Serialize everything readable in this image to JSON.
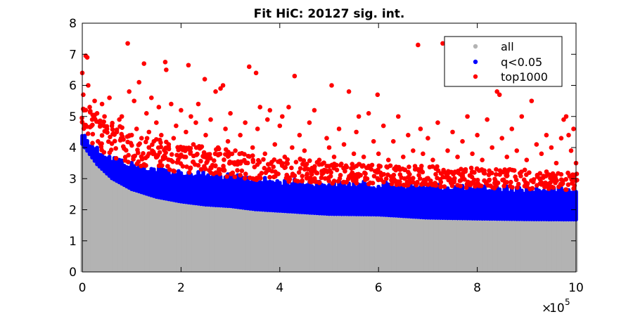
{
  "chart_data": {
    "type": "scatter",
    "title": "Fit HiC: 20127 sig. int.",
    "xlabel": "",
    "ylabel": "",
    "x_multiplier_label": "10",
    "x_multiplier_exponent": "5",
    "xlim": [
      0,
      10
    ],
    "ylim": [
      0,
      8
    ],
    "x_ticks": [
      0,
      2,
      4,
      6,
      8,
      10
    ],
    "x_tick_labels": [
      "0",
      "2",
      "4",
      "6",
      "8",
      "10"
    ],
    "y_ticks": [
      0,
      1,
      2,
      3,
      4,
      5,
      6,
      7,
      8
    ],
    "y_tick_labels": [
      "0",
      "1",
      "2",
      "3",
      "4",
      "5",
      "6",
      "7",
      "8"
    ],
    "grid": false,
    "legend_position": "top-right",
    "series": [
      {
        "name": "all",
        "color": "#b3b3b3",
        "x_start": 0.0,
        "x_end": 10.0,
        "column_spacing": 0.05,
        "ceiling_profile": [
          [
            0.0,
            4.05
          ],
          [
            0.3,
            3.4
          ],
          [
            0.6,
            2.95
          ],
          [
            1.0,
            2.6
          ],
          [
            1.5,
            2.35
          ],
          [
            2.0,
            2.2
          ],
          [
            2.5,
            2.1
          ],
          [
            3.0,
            2.05
          ],
          [
            3.5,
            1.95
          ],
          [
            4.0,
            1.9
          ],
          [
            5.0,
            1.8
          ],
          [
            6.0,
            1.78
          ],
          [
            7.0,
            1.68
          ],
          [
            8.0,
            1.65
          ],
          [
            9.0,
            1.63
          ],
          [
            10.0,
            1.62
          ]
        ],
        "y_min": 0.0
      },
      {
        "name": "q<0.05",
        "color": "#0000ff",
        "x_start": 0.0,
        "x_end": 10.0,
        "column_spacing": 0.05,
        "floor_profile": [
          [
            0.0,
            4.05
          ],
          [
            0.3,
            3.4
          ],
          [
            0.6,
            2.95
          ],
          [
            1.0,
            2.6
          ],
          [
            1.5,
            2.35
          ],
          [
            2.0,
            2.2
          ],
          [
            2.5,
            2.1
          ],
          [
            3.0,
            2.05
          ],
          [
            3.5,
            1.95
          ],
          [
            4.0,
            1.9
          ],
          [
            5.0,
            1.8
          ],
          [
            6.0,
            1.78
          ],
          [
            7.0,
            1.68
          ],
          [
            8.0,
            1.65
          ],
          [
            9.0,
            1.63
          ],
          [
            10.0,
            1.62
          ]
        ],
        "ceiling_profile": [
          [
            0.0,
            4.6
          ],
          [
            0.3,
            4.1
          ],
          [
            0.6,
            3.8
          ],
          [
            1.0,
            3.6
          ],
          [
            1.5,
            3.45
          ],
          [
            2.0,
            3.35
          ],
          [
            2.5,
            3.28
          ],
          [
            3.0,
            3.2
          ],
          [
            3.5,
            3.12
          ],
          [
            4.0,
            3.05
          ],
          [
            5.0,
            3.0
          ],
          [
            6.0,
            2.95
          ],
          [
            7.0,
            2.9
          ],
          [
            8.0,
            2.85
          ],
          [
            9.0,
            2.82
          ],
          [
            10.0,
            2.78
          ]
        ]
      },
      {
        "name": "top1000",
        "color": "#ff0000",
        "points": [
          [
            0.0,
            6.4
          ],
          [
            0.02,
            5.7
          ],
          [
            0.03,
            5.2
          ],
          [
            0.07,
            6.95
          ],
          [
            0.1,
            6.9
          ],
          [
            0.12,
            6.0
          ],
          [
            0.15,
            5.3
          ],
          [
            0.2,
            4.9
          ],
          [
            0.25,
            5.5
          ],
          [
            0.3,
            5.1
          ],
          [
            0.35,
            4.8
          ],
          [
            0.4,
            5.4
          ],
          [
            0.45,
            5.0
          ],
          [
            0.5,
            4.6
          ],
          [
            0.55,
            5.6
          ],
          [
            0.6,
            4.7
          ],
          [
            0.7,
            4.5
          ],
          [
            0.75,
            4.9
          ],
          [
            0.8,
            5.0
          ],
          [
            0.92,
            7.35
          ],
          [
            0.95,
            5.8
          ],
          [
            1.0,
            4.4
          ],
          [
            1.05,
            5.5
          ],
          [
            1.1,
            4.6
          ],
          [
            1.15,
            6.1
          ],
          [
            1.2,
            4.3
          ],
          [
            1.25,
            6.7
          ],
          [
            1.3,
            5.1
          ],
          [
            1.35,
            4.5
          ],
          [
            1.4,
            5.6
          ],
          [
            1.45,
            4.2
          ],
          [
            1.5,
            4.8
          ],
          [
            1.55,
            5.3
          ],
          [
            1.6,
            4.4
          ],
          [
            1.68,
            6.75
          ],
          [
            1.7,
            6.5
          ],
          [
            1.75,
            4.1
          ],
          [
            1.8,
            5.4
          ],
          [
            1.85,
            4.3
          ],
          [
            1.9,
            4.7
          ],
          [
            2.0,
            5.2
          ],
          [
            2.05,
            4.0
          ],
          [
            2.1,
            4.5
          ],
          [
            2.15,
            6.65
          ],
          [
            2.2,
            5.0
          ],
          [
            2.25,
            4.1
          ],
          [
            2.3,
            4.8
          ],
          [
            2.35,
            5.4
          ],
          [
            2.4,
            4.0
          ],
          [
            2.48,
            6.2
          ],
          [
            2.5,
            4.4
          ],
          [
            2.6,
            4.9
          ],
          [
            2.7,
            5.8
          ],
          [
            2.75,
            4.0
          ],
          [
            2.8,
            5.9
          ],
          [
            2.85,
            6.0
          ],
          [
            2.9,
            4.6
          ],
          [
            2.95,
            4.2
          ],
          [
            3.0,
            5.1
          ],
          [
            3.1,
            3.9
          ],
          [
            3.2,
            4.4
          ],
          [
            3.3,
            4.8
          ],
          [
            3.38,
            6.6
          ],
          [
            3.45,
            4.0
          ],
          [
            3.52,
            6.4
          ],
          [
            3.55,
            4.6
          ],
          [
            3.6,
            5.3
          ],
          [
            3.7,
            3.8
          ],
          [
            3.75,
            4.9
          ],
          [
            3.8,
            5.2
          ],
          [
            3.9,
            4.1
          ],
          [
            4.0,
            4.7
          ],
          [
            4.05,
            5.0
          ],
          [
            4.1,
            3.7
          ],
          [
            4.18,
            5.3
          ],
          [
            4.25,
            4.0
          ],
          [
            4.3,
            6.3
          ],
          [
            4.4,
            4.4
          ],
          [
            4.5,
            3.9
          ],
          [
            4.6,
            4.8
          ],
          [
            4.7,
            5.2
          ],
          [
            4.8,
            3.6
          ],
          [
            4.95,
            4.3
          ],
          [
            5.0,
            4.0
          ],
          [
            5.05,
            6.0
          ],
          [
            5.1,
            3.7
          ],
          [
            5.2,
            4.6
          ],
          [
            5.3,
            4.1
          ],
          [
            5.4,
            5.8
          ],
          [
            5.5,
            3.8
          ],
          [
            5.55,
            4.5
          ],
          [
            5.6,
            5.0
          ],
          [
            5.7,
            3.7
          ],
          [
            5.8,
            5.1
          ],
          [
            5.9,
            4.2
          ],
          [
            5.98,
            5.7
          ],
          [
            6.0,
            3.8
          ],
          [
            6.1,
            4.7
          ],
          [
            6.2,
            3.6
          ],
          [
            6.3,
            4.2
          ],
          [
            6.4,
            5.0
          ],
          [
            6.5,
            3.7
          ],
          [
            6.6,
            4.4
          ],
          [
            6.7,
            3.9
          ],
          [
            6.8,
            7.3
          ],
          [
            6.85,
            4.6
          ],
          [
            6.9,
            3.8
          ],
          [
            7.0,
            4.3
          ],
          [
            7.1,
            3.6
          ],
          [
            7.2,
            4.8
          ],
          [
            7.3,
            7.35
          ],
          [
            7.4,
            3.9
          ],
          [
            7.5,
            4.5
          ],
          [
            7.6,
            3.7
          ],
          [
            7.7,
            4.2
          ],
          [
            7.8,
            5.0
          ],
          [
            7.9,
            3.8
          ],
          [
            8.0,
            4.4
          ],
          [
            8.1,
            3.6
          ],
          [
            8.2,
            4.9
          ],
          [
            8.3,
            4.0
          ],
          [
            8.4,
            5.8
          ],
          [
            8.45,
            5.7
          ],
          [
            8.5,
            4.3
          ],
          [
            8.6,
            3.7
          ],
          [
            8.7,
            4.6
          ],
          [
            8.8,
            3.9
          ],
          [
            8.9,
            5.0
          ],
          [
            9.0,
            3.6
          ],
          [
            9.1,
            5.5
          ],
          [
            9.2,
            4.1
          ],
          [
            9.3,
            3.8
          ],
          [
            9.4,
            4.4
          ],
          [
            9.5,
            4.0
          ],
          [
            9.6,
            3.5
          ],
          [
            9.7,
            4.3
          ],
          [
            9.75,
            4.9
          ],
          [
            9.8,
            5.0
          ],
          [
            9.85,
            4.4
          ],
          [
            9.9,
            3.9
          ],
          [
            9.95,
            4.6
          ],
          [
            10.0,
            3.5
          ]
        ],
        "band_floor_profile": [
          [
            0.0,
            4.6
          ],
          [
            0.3,
            4.1
          ],
          [
            0.6,
            3.8
          ],
          [
            1.0,
            3.6
          ],
          [
            1.5,
            3.45
          ],
          [
            2.0,
            3.35
          ],
          [
            2.5,
            3.28
          ],
          [
            3.0,
            3.2
          ],
          [
            3.5,
            3.12
          ],
          [
            4.0,
            3.05
          ],
          [
            5.0,
            3.0
          ],
          [
            6.0,
            2.95
          ],
          [
            7.0,
            2.9
          ],
          [
            8.0,
            2.85
          ],
          [
            9.0,
            2.82
          ],
          [
            10.0,
            2.78
          ]
        ],
        "band_ceiling_profile": [
          [
            0.0,
            5.3
          ],
          [
            0.5,
            4.9
          ],
          [
            1.0,
            4.5
          ],
          [
            2.0,
            4.1
          ],
          [
            3.0,
            3.95
          ],
          [
            4.0,
            3.7
          ],
          [
            5.0,
            3.55
          ],
          [
            6.0,
            3.45
          ],
          [
            7.0,
            3.4
          ],
          [
            8.0,
            3.35
          ],
          [
            9.0,
            3.3
          ],
          [
            10.0,
            3.2
          ]
        ]
      }
    ]
  }
}
